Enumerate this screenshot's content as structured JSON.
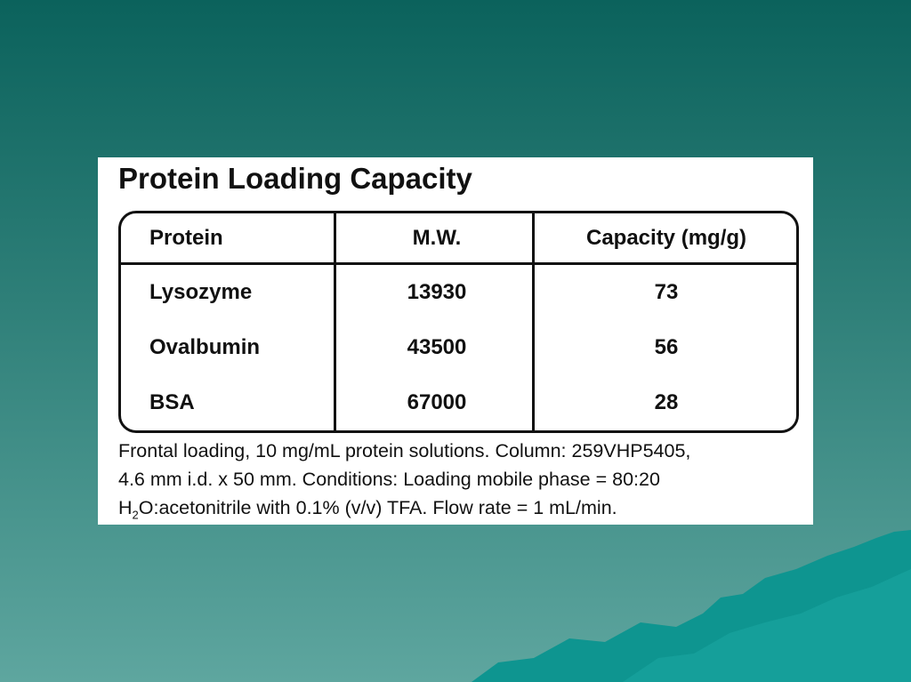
{
  "slide": {
    "title": "Protein Loading Capacity",
    "table": {
      "header": [
        "Protein",
        "M.W.",
        "Capacity (mg/g)"
      ],
      "rows": [
        [
          "Lysozyme",
          13930,
          73
        ],
        [
          "Ovalbumin",
          43500,
          56
        ],
        [
          "BSA",
          67000,
          28
        ]
      ]
    },
    "caption": {
      "lines": [
        "Frontal loading, 10 mg/mL protein solutions. Column: 259VHP5405,",
        "4.6 mm i.d. x 50 mm. Conditions: Loading mobile phase = 80:20"
      ],
      "last_line": {
        "base": "H",
        "subscript": "2",
        "rest": "O:acetonitrile with 0.1% (v/v) TFA. Flow rate = 1 mL/min."
      }
    }
  }
}
